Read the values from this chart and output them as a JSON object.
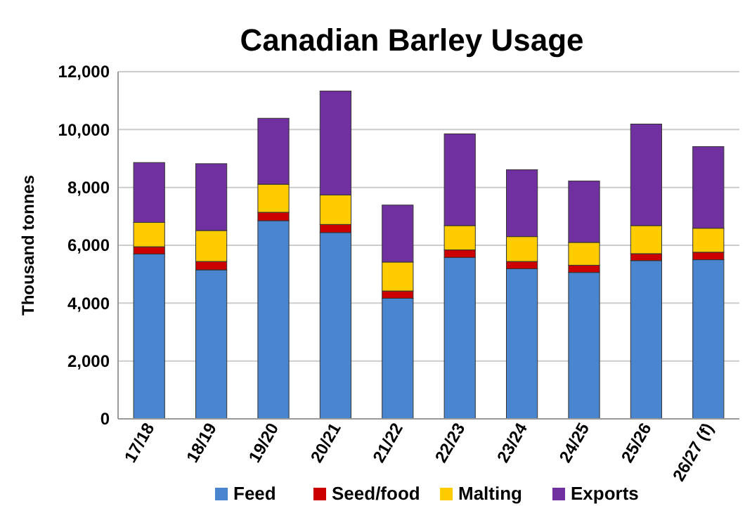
{
  "chart_data": {
    "type": "bar",
    "title": "Canadian Barley Usage",
    "ylabel": "Thousand tonnes",
    "stacked": true,
    "categories": [
      "17/18",
      "18/19",
      "19/20",
      "20/21",
      "21/22",
      "22/23",
      "23/24",
      "24/25",
      "25/26",
      "26/27 (f)"
    ],
    "series": [
      {
        "name": "Feed",
        "color": "#4a86d0",
        "values": [
          5700,
          5150,
          6850,
          6440,
          4170,
          5580,
          5190,
          5060,
          5470,
          5500
        ]
      },
      {
        "name": "Seed/food",
        "color": "#cc0000",
        "values": [
          250,
          290,
          290,
          280,
          250,
          260,
          250,
          250,
          240,
          260
        ]
      },
      {
        "name": "Malting",
        "color": "#ffcc00",
        "values": [
          840,
          1070,
          970,
          1020,
          1000,
          840,
          860,
          790,
          970,
          830
        ]
      },
      {
        "name": "Exports",
        "color": "#7030a0",
        "values": [
          2070,
          2310,
          2280,
          3590,
          1970,
          3170,
          2310,
          2120,
          3510,
          2820
        ]
      }
    ],
    "ylim": [
      0,
      12000
    ],
    "yticks": [
      {
        "value": 0,
        "label": "0"
      },
      {
        "value": 2000,
        "label": "2,000"
      },
      {
        "value": 4000,
        "label": "4,000"
      },
      {
        "value": 6000,
        "label": "6,000"
      },
      {
        "value": 8000,
        "label": "8,000"
      },
      {
        "value": 10000,
        "label": "10,000"
      },
      {
        "value": 12000,
        "label": "12,000"
      }
    ],
    "grid": "y",
    "legend": "bottom"
  }
}
